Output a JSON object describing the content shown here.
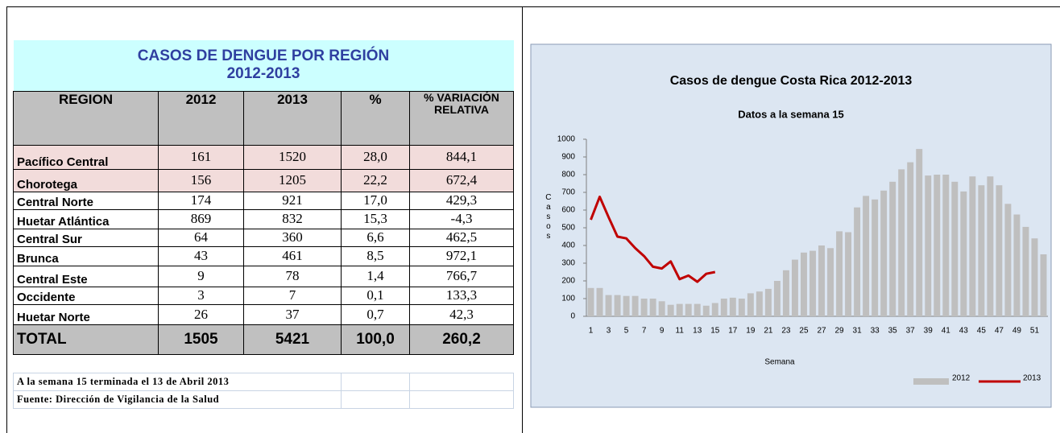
{
  "table": {
    "title": "CASOS DE DENGUE POR REGIÓN",
    "subtitle": "2012-2013",
    "header": [
      "REGION",
      "2012",
      "2013",
      "%",
      "% VARIACIÓN RELATIVA"
    ],
    "rows": [
      [
        "Pacífico Central",
        "161",
        "1520",
        "28,0",
        "844,1"
      ],
      [
        "Chorotega",
        "156",
        "1205",
        "22,2",
        "672,4"
      ],
      [
        "Central Norte",
        "174",
        "921",
        "17,0",
        "429,3"
      ],
      [
        "Huetar  Atlántica",
        "869",
        "832",
        "15,3",
        "-4,3"
      ],
      [
        "Central Sur",
        "64",
        "360",
        "6,6",
        "462,5"
      ],
      [
        "Brunca",
        "43",
        "461",
        "8,5",
        "972,1"
      ],
      [
        "Central Este",
        "9",
        "78",
        "1,4",
        "766,7"
      ],
      [
        "Occidente",
        "3",
        "7",
        "0,1",
        "133,3"
      ],
      [
        "Huetar Norte",
        "26",
        "37",
        "0,7",
        "42,3"
      ]
    ],
    "total": [
      "TOTAL",
      "1505",
      "5421",
      "100,0",
      "260,2"
    ],
    "notes": [
      "A la semana 15 terminada el 13 de Abril 2013",
      "Fuente: Dirección de Vigilancia de la Salud"
    ]
  },
  "chart_data": {
    "type": "bar",
    "title": "Casos de dengue Costa Rica 2012-2013",
    "subtitle": "Datos a la semana 15",
    "x_label": "Semana",
    "y_label": "Casos",
    "categories": [
      "1",
      null,
      "3",
      null,
      "5",
      null,
      "7",
      null,
      "9",
      null,
      "11",
      null,
      "13",
      null,
      "15",
      null,
      "17",
      null,
      "19",
      null,
      "21",
      null,
      "23",
      null,
      "25",
      null,
      "27",
      null,
      "29",
      null,
      "31",
      null,
      "33",
      null,
      "35",
      null,
      "37",
      null,
      "39",
      null,
      "41",
      null,
      "43",
      null,
      "45",
      null,
      "47",
      null,
      "49",
      null,
      "51",
      null
    ],
    "series": [
      {
        "name": "2012",
        "type": "bar",
        "color": "#bfbfbf",
        "values": [
          160,
          160,
          120,
          120,
          115,
          115,
          100,
          100,
          85,
          65,
          70,
          70,
          70,
          60,
          75,
          100,
          105,
          100,
          130,
          140,
          155,
          200,
          260,
          320,
          360,
          370,
          400,
          385,
          480,
          475,
          615,
          680,
          660,
          710,
          760,
          830,
          870,
          945,
          795,
          800,
          800,
          760,
          705,
          790,
          740,
          790,
          740,
          635,
          575,
          505,
          440,
          350
        ]
      },
      {
        "name": "2013",
        "type": "line",
        "color": "#c00000",
        "values": [
          545,
          675,
          560,
          450,
          440,
          385,
          340,
          280,
          270,
          310,
          210,
          230,
          195,
          240,
          250,
          null,
          null,
          null,
          null,
          null,
          null,
          null,
          null,
          null,
          null,
          null,
          null,
          null,
          null,
          null,
          null,
          null,
          null,
          null,
          null,
          null,
          null,
          null,
          null,
          null,
          null,
          null,
          null,
          null,
          null,
          null,
          null,
          null,
          null,
          null,
          null,
          null
        ]
      }
    ],
    "ylim": [
      0,
      1000
    ],
    "yticks": [
      0,
      100,
      200,
      300,
      400,
      500,
      600,
      700,
      800,
      900,
      1000
    ],
    "grid": false,
    "legend": "bottom-right"
  }
}
